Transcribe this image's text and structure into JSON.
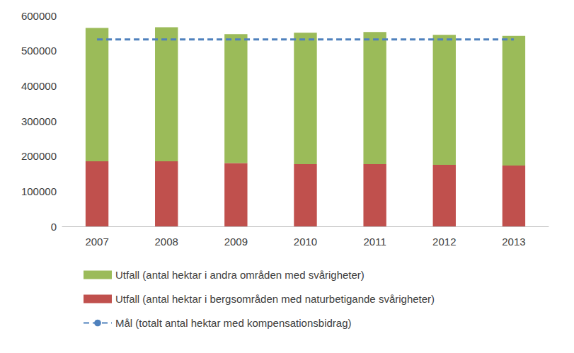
{
  "chart_data": {
    "type": "bar",
    "stacked": true,
    "categories": [
      "2007",
      "2008",
      "2009",
      "2010",
      "2011",
      "2012",
      "2013"
    ],
    "series": [
      {
        "name": "Utfall (antal hektar i bergsområden med naturbetigande svårigheter)",
        "type": "bar",
        "color": "#c0504d",
        "values": [
          185000,
          185000,
          180000,
          177000,
          177000,
          175000,
          173000
        ]
      },
      {
        "name": "Utfall (antal hektar i andra områden med svårigheter)",
        "type": "bar",
        "color": "#9bbb59",
        "values": [
          380000,
          382000,
          367000,
          374000,
          376000,
          370000,
          369000
        ]
      },
      {
        "name": "Mål (totalt antal hektar med kompensationsbidrag)",
        "type": "line",
        "color": "#4f81bd",
        "line_style": "dashed",
        "values": [
          532000,
          532000,
          532000,
          532000,
          532000,
          532000,
          532000
        ]
      }
    ],
    "ylim": [
      0,
      600000
    ],
    "yticks": [
      0,
      100000,
      200000,
      300000,
      400000,
      500000,
      600000
    ],
    "grid": false,
    "legend": "bottom"
  }
}
